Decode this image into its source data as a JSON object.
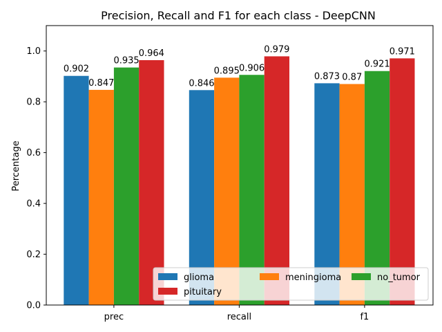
{
  "chart_data": {
    "type": "bar",
    "title": "Precision, Recall and F1 for each class - DeepCNN",
    "xlabel": "",
    "ylabel": "Percentage",
    "ylim": [
      0,
      1.1
    ],
    "yticks": [
      0.0,
      0.2,
      0.4,
      0.6,
      0.8,
      1.0
    ],
    "ytick_labels": [
      "0.0",
      "0.2",
      "0.4",
      "0.6",
      "0.8",
      "1.0"
    ],
    "categories": [
      "prec",
      "recall",
      "f1"
    ],
    "series": [
      {
        "name": "glioma",
        "color": "#1f77b4",
        "values": [
          0.902,
          0.846,
          0.873
        ],
        "labels": [
          "0.902",
          "0.846",
          "0.873"
        ]
      },
      {
        "name": "meningioma",
        "color": "#ff7f0e",
        "values": [
          0.847,
          0.895,
          0.87
        ],
        "labels": [
          "0.847",
          "0.895",
          "0.87"
        ]
      },
      {
        "name": "no_tumor",
        "color": "#2ca02c",
        "values": [
          0.935,
          0.906,
          0.921
        ],
        "labels": [
          "0.935",
          "0.906",
          "0.921"
        ]
      },
      {
        "name": "pituitary",
        "color": "#d62728",
        "values": [
          0.964,
          0.979,
          0.971
        ],
        "labels": [
          "0.964",
          "0.979",
          "0.971"
        ]
      }
    ],
    "legend": {
      "position": "lower-right",
      "columns": 3
    },
    "grid": false
  }
}
